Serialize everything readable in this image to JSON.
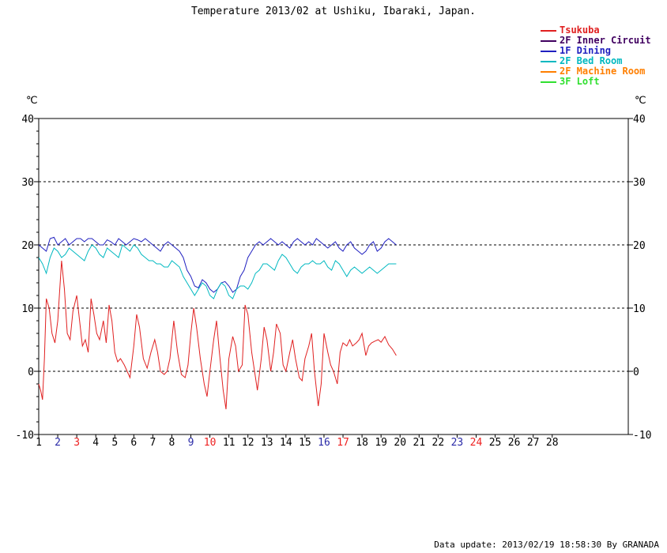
{
  "chart_data": {
    "type": "line",
    "title": "Temperature 2013/02 at Ushiku, Ibaraki, Japan.",
    "y_unit": "℃",
    "ylim": [
      -10,
      40
    ],
    "yticks": [
      -10,
      0,
      10,
      20,
      30,
      40
    ],
    "xlim": [
      1,
      32
    ],
    "days": [
      {
        "label": "1",
        "color": "#000000"
      },
      {
        "label": "2",
        "color": "#2a2aa8"
      },
      {
        "label": "3",
        "color": "#ee2222"
      },
      {
        "label": "4",
        "color": "#000000"
      },
      {
        "label": "5",
        "color": "#000000"
      },
      {
        "label": "6",
        "color": "#000000"
      },
      {
        "label": "7",
        "color": "#000000"
      },
      {
        "label": "8",
        "color": "#000000"
      },
      {
        "label": "9",
        "color": "#2a2aa8"
      },
      {
        "label": "10",
        "color": "#ee2222"
      },
      {
        "label": "11",
        "color": "#000000"
      },
      {
        "label": "12",
        "color": "#000000"
      },
      {
        "label": "13",
        "color": "#000000"
      },
      {
        "label": "14",
        "color": "#000000"
      },
      {
        "label": "15",
        "color": "#000000"
      },
      {
        "label": "16",
        "color": "#2a2aa8"
      },
      {
        "label": "17",
        "color": "#ee2222"
      },
      {
        "label": "18",
        "color": "#000000"
      },
      {
        "label": "19",
        "color": "#000000"
      },
      {
        "label": "20",
        "color": "#000000"
      },
      {
        "label": "21",
        "color": "#000000"
      },
      {
        "label": "22",
        "color": "#000000"
      },
      {
        "label": "23",
        "color": "#2a2aa8"
      },
      {
        "label": "24",
        "color": "#ee2222"
      },
      {
        "label": "25",
        "color": "#000000"
      },
      {
        "label": "26",
        "color": "#000000"
      },
      {
        "label": "27",
        "color": "#000000"
      },
      {
        "label": "28",
        "color": "#000000"
      }
    ],
    "grid": {
      "dashed_at": [
        0,
        10,
        20,
        30
      ]
    },
    "legend_placement": "top-right",
    "series": [
      {
        "name": "Tsukuba",
        "color": "#e02020",
        "x": [
          1,
          1.1,
          1.2,
          1.3,
          1.4,
          1.55,
          1.7,
          1.85,
          2.0,
          2.2,
          2.35,
          2.5,
          2.65,
          2.8,
          3.0,
          3.15,
          3.3,
          3.45,
          3.6,
          3.75,
          3.9,
          4.05,
          4.2,
          4.4,
          4.55,
          4.7,
          4.85,
          5.0,
          5.15,
          5.3,
          5.5,
          5.65,
          5.8,
          6.0,
          6.15,
          6.3,
          6.5,
          6.7,
          6.9,
          7.1,
          7.25,
          7.4,
          7.6,
          7.75,
          7.9,
          8.1,
          8.3,
          8.5,
          8.7,
          8.85,
          9.0,
          9.15,
          9.3,
          9.5,
          9.7,
          9.85,
          10.0,
          10.2,
          10.35,
          10.5,
          10.7,
          10.85,
          11.0,
          11.2,
          11.35,
          11.5,
          11.7,
          11.85,
          12.0,
          12.2,
          12.35,
          12.5,
          12.7,
          12.85,
          13.0,
          13.2,
          13.35,
          13.5,
          13.7,
          13.85,
          14.0,
          14.2,
          14.35,
          14.5,
          14.7,
          14.85,
          15.0,
          15.2,
          15.35,
          15.5,
          15.7,
          15.85,
          16.0,
          16.2,
          16.35,
          16.5,
          16.7,
          16.85,
          17.0,
          17.2,
          17.35,
          17.5,
          17.7,
          17.85,
          18.0,
          18.2,
          18.35,
          18.5,
          18.7,
          18.85,
          19.0,
          19.2,
          19.4,
          19.6,
          19.8
        ],
        "y": [
          -2,
          -3,
          -4.5,
          2,
          11.5,
          10,
          6,
          4.5,
          8,
          17.5,
          13,
          6,
          5,
          9.5,
          12,
          8,
          4,
          5,
          3,
          11.5,
          9,
          6,
          5,
          8,
          4.5,
          10.5,
          8,
          3,
          1.5,
          2,
          1,
          0,
          -1,
          4,
          9,
          7,
          2,
          0.5,
          3,
          5,
          3,
          0,
          -0.5,
          0,
          2,
          8,
          3,
          -0.5,
          -1,
          1,
          6,
          10,
          7,
          2,
          -2,
          -4,
          0,
          5,
          8,
          3,
          -3,
          -6,
          2,
          5.5,
          4,
          0,
          1,
          10.5,
          9,
          3,
          0,
          -3,
          2,
          7,
          5,
          0,
          3,
          7.5,
          6,
          1,
          0,
          3,
          5,
          2,
          -1,
          -1.5,
          2,
          4,
          6,
          0,
          -5.5,
          -2,
          6,
          3,
          1,
          0,
          -2,
          3,
          4.5,
          4,
          5,
          4,
          4.5,
          5,
          6,
          2.5,
          4,
          4.5,
          4.8,
          5,
          4.6,
          5.5,
          4.2,
          3.5,
          2.5
        ]
      },
      {
        "name": "2F Inner Circuit",
        "color": "#400060",
        "x": [],
        "y": []
      },
      {
        "name": "1F Dining",
        "color": "#2020c0",
        "x": [
          1,
          1.2,
          1.4,
          1.6,
          1.8,
          2.0,
          2.2,
          2.4,
          2.6,
          2.8,
          3.0,
          3.2,
          3.4,
          3.6,
          3.8,
          4.0,
          4.2,
          4.4,
          4.6,
          4.8,
          5.0,
          5.2,
          5.4,
          5.6,
          5.8,
          6.0,
          6.2,
          6.4,
          6.6,
          6.8,
          7.0,
          7.2,
          7.4,
          7.6,
          7.8,
          8.0,
          8.2,
          8.4,
          8.6,
          8.8,
          9.0,
          9.2,
          9.4,
          9.6,
          9.8,
          10.0,
          10.2,
          10.4,
          10.6,
          10.8,
          11.0,
          11.2,
          11.4,
          11.6,
          11.8,
          12.0,
          12.2,
          12.4,
          12.6,
          12.8,
          13.0,
          13.2,
          13.4,
          13.6,
          13.8,
          14.0,
          14.2,
          14.4,
          14.6,
          14.8,
          15.0,
          15.2,
          15.4,
          15.6,
          15.8,
          16.0,
          16.2,
          16.4,
          16.6,
          16.8,
          17.0,
          17.2,
          17.4,
          17.6,
          17.8,
          18.0,
          18.2,
          18.4,
          18.6,
          18.8,
          19.0,
          19.2,
          19.4,
          19.6,
          19.8
        ],
        "y": [
          20,
          19.5,
          19,
          21,
          21.2,
          20,
          20.5,
          21,
          20,
          20.5,
          21,
          21,
          20.5,
          21,
          21,
          20.5,
          20,
          20,
          20.8,
          20.5,
          20,
          21,
          20.5,
          20,
          20.5,
          21,
          20.8,
          20.5,
          21,
          20.5,
          20,
          19.5,
          19,
          20,
          20.5,
          20,
          19.5,
          19,
          18,
          16,
          15,
          13.5,
          13.2,
          14.5,
          14,
          13,
          12.5,
          13,
          14,
          14.2,
          13.5,
          12.5,
          13,
          15,
          16,
          18,
          19,
          20,
          20.5,
          20,
          20.5,
          21,
          20.5,
          20,
          20.5,
          20,
          19.5,
          20.5,
          21,
          20.5,
          20,
          20.5,
          20,
          21,
          20.5,
          20,
          19.5,
          20,
          20.5,
          19.5,
          19,
          20,
          20.5,
          19.5,
          19,
          18.5,
          19,
          20,
          20.5,
          19,
          19.5,
          20.5,
          21,
          20.5,
          20
        ]
      },
      {
        "name": "2F Bed Room",
        "color": "#00b8c0",
        "x": [
          1,
          1.2,
          1.4,
          1.6,
          1.8,
          2.0,
          2.2,
          2.4,
          2.6,
          2.8,
          3.0,
          3.2,
          3.4,
          3.6,
          3.8,
          4.0,
          4.2,
          4.4,
          4.6,
          4.8,
          5.0,
          5.2,
          5.4,
          5.6,
          5.8,
          6.0,
          6.2,
          6.4,
          6.6,
          6.8,
          7.0,
          7.2,
          7.4,
          7.6,
          7.8,
          8.0,
          8.2,
          8.4,
          8.6,
          8.8,
          9.0,
          9.2,
          9.4,
          9.6,
          9.8,
          10.0,
          10.2,
          10.4,
          10.6,
          10.8,
          11.0,
          11.2,
          11.4,
          11.6,
          11.8,
          12.0,
          12.2,
          12.4,
          12.6,
          12.8,
          13.0,
          13.2,
          13.4,
          13.6,
          13.8,
          14.0,
          14.2,
          14.4,
          14.6,
          14.8,
          15.0,
          15.2,
          15.4,
          15.6,
          15.8,
          16.0,
          16.2,
          16.4,
          16.6,
          16.8,
          17.0,
          17.2,
          17.4,
          17.6,
          17.8,
          18.0,
          18.2,
          18.4,
          18.6,
          18.8,
          19.0,
          19.2,
          19.4,
          19.6,
          19.8
        ],
        "y": [
          18,
          17,
          15.5,
          18,
          19.5,
          19,
          18,
          18.5,
          19.5,
          19,
          18.5,
          18,
          17.5,
          19,
          20,
          19.5,
          18.5,
          18,
          19.5,
          19,
          18.5,
          18,
          20,
          19.5,
          19,
          20,
          19.5,
          18.5,
          18,
          17.5,
          17.5,
          17,
          17,
          16.5,
          16.5,
          17.5,
          17,
          16.5,
          15,
          14,
          13,
          12,
          13,
          14,
          13.5,
          12,
          11.5,
          13,
          14,
          13.5,
          12,
          11.5,
          13,
          13.5,
          13.5,
          13,
          14,
          15.5,
          16,
          17,
          17,
          16.5,
          16,
          17.5,
          18.5,
          18,
          17,
          16,
          15.5,
          16.5,
          17,
          17,
          17.5,
          17,
          17,
          17.5,
          16.5,
          16,
          17.5,
          17,
          16,
          15,
          16,
          16.5,
          16,
          15.5,
          16,
          16.5,
          16,
          15.5,
          16,
          16.5,
          17,
          17,
          17
        ]
      },
      {
        "name": "2F Machine Room",
        "color": "#ff7f00",
        "x": [],
        "y": []
      },
      {
        "name": "3F Loft",
        "color": "#30e030",
        "x": [],
        "y": []
      }
    ]
  },
  "footer": {
    "text": "Data update: 2013/02/19 18:58:30 By GRANADA"
  }
}
